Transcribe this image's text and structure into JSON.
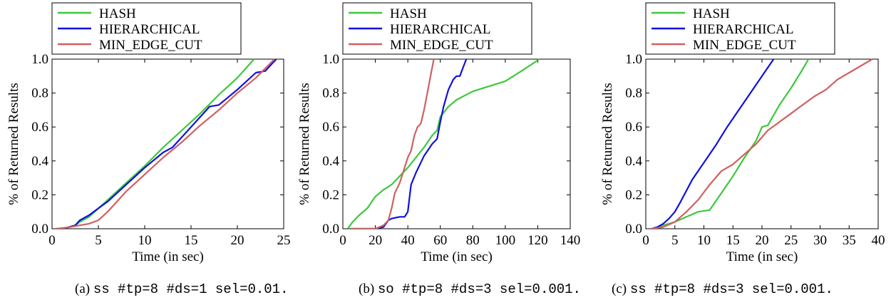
{
  "chart_data": [
    {
      "type": "line",
      "caption_prefix": "(a)",
      "caption_text": "ss #tp=8 #ds=1 sel=0.01.",
      "xlabel": "Time (in sec)",
      "ylabel": "% of Returned Results",
      "xlim": [
        0,
        25
      ],
      "ylim": [
        0,
        1
      ],
      "xticks": [
        0,
        5,
        10,
        15,
        20,
        25
      ],
      "yticks": [
        0.0,
        0.2,
        0.4,
        0.6,
        0.8,
        1.0
      ],
      "xtick_labels": [
        "0",
        "5",
        "10",
        "15",
        "20",
        "25"
      ],
      "ytick_labels": [
        "0.0",
        "0.2",
        "0.4",
        "0.6",
        "0.8",
        "1.0"
      ],
      "legend_position": "top-left",
      "series": [
        {
          "name": "HASH",
          "color": "#3cc83c",
          "x": [
            0.5,
            1.5,
            2.5,
            3.0,
            4.0,
            5.0,
            6.0,
            8.0,
            10.0,
            12.0,
            14.0,
            16.0,
            18.0,
            20.0,
            21.8
          ],
          "y": [
            0.0,
            0.005,
            0.02,
            0.04,
            0.07,
            0.12,
            0.17,
            0.27,
            0.37,
            0.48,
            0.58,
            0.68,
            0.79,
            0.89,
            1.0
          ]
        },
        {
          "name": "HIERARCHICAL",
          "color": "#1010e0",
          "x": [
            0.5,
            1.5,
            2.5,
            3.0,
            4.0,
            5.0,
            6.0,
            8.0,
            10.0,
            12.0,
            13.0,
            15.0,
            17.0,
            18.0,
            20.0,
            22.0,
            23.0,
            24.2
          ],
          "y": [
            0.0,
            0.005,
            0.02,
            0.05,
            0.08,
            0.12,
            0.16,
            0.26,
            0.36,
            0.45,
            0.48,
            0.6,
            0.72,
            0.73,
            0.82,
            0.92,
            0.93,
            1.0
          ]
        },
        {
          "name": "MIN_EDGE_CUT",
          "color": "#d06060",
          "x": [
            0.5,
            2.0,
            3.0,
            4.0,
            5.0,
            6.0,
            8.0,
            10.0,
            12.0,
            14.0,
            16.0,
            18.0,
            20.0,
            22.0,
            24.0
          ],
          "y": [
            0.0,
            0.01,
            0.02,
            0.03,
            0.05,
            0.1,
            0.22,
            0.32,
            0.42,
            0.51,
            0.61,
            0.7,
            0.8,
            0.89,
            1.0
          ]
        }
      ]
    },
    {
      "type": "line",
      "caption_prefix": "(b)",
      "caption_text": "so #tp=8 #ds=3 sel=0.001.",
      "xlabel": "Time (in sec)",
      "ylabel": "% of Returned Results",
      "xlim": [
        0,
        140
      ],
      "ylim": [
        0,
        1
      ],
      "xticks": [
        0,
        20,
        40,
        60,
        80,
        100,
        120,
        140
      ],
      "yticks": [
        0.0,
        0.2,
        0.4,
        0.6,
        0.8,
        1.0
      ],
      "xtick_labels": [
        "0",
        "20",
        "40",
        "60",
        "80",
        "100",
        "120",
        "140"
      ],
      "ytick_labels": [
        "0.0",
        "0.2",
        "0.4",
        "0.6",
        "0.8",
        "1.0"
      ],
      "legend_position": "top-left",
      "series": [
        {
          "name": "HASH",
          "color": "#3cc83c",
          "x": [
            3,
            6,
            10,
            15,
            20,
            25,
            30,
            40,
            50,
            55,
            58,
            60,
            65,
            70,
            80,
            90,
            100,
            110,
            121
          ],
          "y": [
            0.0,
            0.04,
            0.08,
            0.12,
            0.19,
            0.23,
            0.26,
            0.36,
            0.48,
            0.55,
            0.58,
            0.66,
            0.72,
            0.76,
            0.81,
            0.84,
            0.87,
            0.93,
            1.0
          ]
        },
        {
          "name": "HIERARCHICAL",
          "color": "#1010e0",
          "x": [
            5,
            20,
            25,
            28,
            30,
            35,
            38,
            40,
            42,
            45,
            48,
            50,
            55,
            58,
            60,
            62,
            65,
            68,
            70,
            72,
            74,
            76
          ],
          "y": [
            0.0,
            0.0,
            0.01,
            0.05,
            0.06,
            0.07,
            0.07,
            0.1,
            0.26,
            0.33,
            0.39,
            0.43,
            0.5,
            0.53,
            0.63,
            0.72,
            0.82,
            0.88,
            0.9,
            0.9,
            0.95,
            1.0
          ]
        },
        {
          "name": "MIN_EDGE_CUT",
          "color": "#d06060",
          "x": [
            5,
            20,
            25,
            28,
            30,
            32,
            35,
            38,
            40,
            42,
            44,
            46,
            48,
            50,
            52,
            54,
            56
          ],
          "y": [
            0.0,
            0.0,
            0.02,
            0.05,
            0.12,
            0.21,
            0.27,
            0.36,
            0.42,
            0.46,
            0.55,
            0.6,
            0.62,
            0.7,
            0.8,
            0.9,
            1.0
          ]
        }
      ]
    },
    {
      "type": "line",
      "caption_prefix": "(c)",
      "caption_text": "ss #tp=8 #ds=3 sel=0.001.",
      "xlabel": "Time (in sec)",
      "ylabel": "% of Returned Results",
      "xlim": [
        0,
        40
      ],
      "ylim": [
        0,
        1
      ],
      "xticks": [
        0,
        5,
        10,
        15,
        20,
        25,
        30,
        35,
        40
      ],
      "yticks": [
        0.0,
        0.2,
        0.4,
        0.6,
        0.8,
        1.0
      ],
      "xtick_labels": [
        "0",
        "5",
        "10",
        "15",
        "20",
        "25",
        "30",
        "35",
        "40"
      ],
      "ytick_labels": [
        "0.0",
        "0.2",
        "0.4",
        "0.6",
        "0.8",
        "1.0"
      ],
      "legend_position": "top-left",
      "series": [
        {
          "name": "HASH",
          "color": "#3cc83c",
          "x": [
            1,
            3,
            5,
            7,
            9,
            11,
            13,
            15,
            17,
            19,
            20,
            21,
            23,
            25,
            27,
            28
          ],
          "y": [
            0.0,
            0.02,
            0.04,
            0.07,
            0.1,
            0.11,
            0.21,
            0.31,
            0.42,
            0.52,
            0.6,
            0.61,
            0.73,
            0.83,
            0.94,
            1.0
          ]
        },
        {
          "name": "HIERARCHICAL",
          "color": "#1010e0",
          "x": [
            1,
            2,
            3,
            4,
            5,
            6,
            8,
            10,
            12,
            14,
            16,
            18,
            20,
            22
          ],
          "y": [
            0.0,
            0.01,
            0.03,
            0.06,
            0.1,
            0.16,
            0.29,
            0.39,
            0.49,
            0.6,
            0.7,
            0.8,
            0.9,
            1.0
          ]
        },
        {
          "name": "MIN_EDGE_CUT",
          "color": "#d06060",
          "x": [
            1,
            3,
            5,
            7,
            9,
            11,
            13,
            15,
            17,
            19,
            21,
            23,
            25,
            27,
            29,
            31,
            33,
            35,
            37,
            39
          ],
          "y": [
            0.0,
            0.01,
            0.04,
            0.1,
            0.17,
            0.26,
            0.34,
            0.38,
            0.44,
            0.5,
            0.58,
            0.63,
            0.68,
            0.73,
            0.78,
            0.82,
            0.88,
            0.92,
            0.96,
            1.0
          ]
        }
      ]
    }
  ]
}
